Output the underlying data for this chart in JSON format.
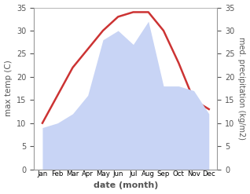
{
  "months": [
    "Jan",
    "Feb",
    "Mar",
    "Apr",
    "May",
    "Jun",
    "Jul",
    "Aug",
    "Sep",
    "Oct",
    "Nov",
    "Dec"
  ],
  "max_temp": [
    10,
    16,
    22,
    26,
    30,
    33,
    34,
    34,
    30,
    23,
    15,
    13
  ],
  "precipitation": [
    9,
    10,
    12,
    16,
    28,
    30,
    27,
    32,
    18,
    18,
    17,
    12
  ],
  "temp_color": "#cc3333",
  "precip_fill_color": "#c8d4f5",
  "ylim": [
    0,
    35
  ],
  "yticks": [
    0,
    5,
    10,
    15,
    20,
    25,
    30,
    35
  ],
  "xlabel": "date (month)",
  "ylabel_left": "max temp (C)",
  "ylabel_right": "med. precipitation (kg/m2)",
  "bg_color": "#ffffff",
  "spine_color": "#999999",
  "tick_color": "#555555"
}
